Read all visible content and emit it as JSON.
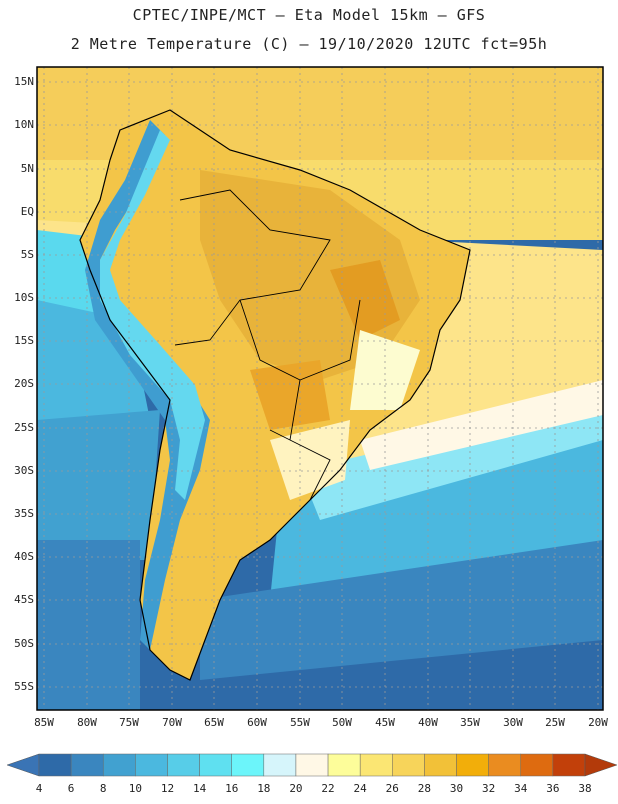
{
  "header": {
    "title_line1": "CPTEC/INPE/MCT –  Eta Model 15km – GFS",
    "title_line2": "2 Metre Temperature (C) – 19/10/2020 12UTC fct=95h"
  },
  "map": {
    "lat_labels": [
      "15N",
      "10N",
      "5N",
      "EQ",
      "5S",
      "10S",
      "15S",
      "20S",
      "25S",
      "30S",
      "35S",
      "40S",
      "45S",
      "50S",
      "55S"
    ],
    "lon_labels": [
      "85W",
      "80W",
      "75W",
      "70W",
      "65W",
      "60W",
      "55W",
      "50W",
      "45W",
      "40W",
      "35W",
      "30W",
      "25W",
      "20W"
    ],
    "lat_range": [
      -58,
      16
    ],
    "lon_range": [
      -86,
      -20
    ]
  },
  "colorbar": {
    "labels": [
      "4",
      "6",
      "8",
      "10",
      "12",
      "14",
      "16",
      "18",
      "20",
      "22",
      "24",
      "26",
      "28",
      "30",
      "32",
      "34",
      "36",
      "38"
    ],
    "colors": [
      "#2e6aa8",
      "#3a86bf",
      "#41a1d0",
      "#4bb8df",
      "#57cde8",
      "#5fe0f0",
      "#6cf5fa",
      "#d6f5fb",
      "#fff8e6",
      "#fdfd9a",
      "#fbe673",
      "#f7d45a",
      "#f2c138",
      "#f2ae0a",
      "#ea8c20",
      "#de6b10",
      "#c2400a"
    ],
    "low_arrow_color": "#3a74b5",
    "high_arrow_color": "#b33a0a"
  }
}
